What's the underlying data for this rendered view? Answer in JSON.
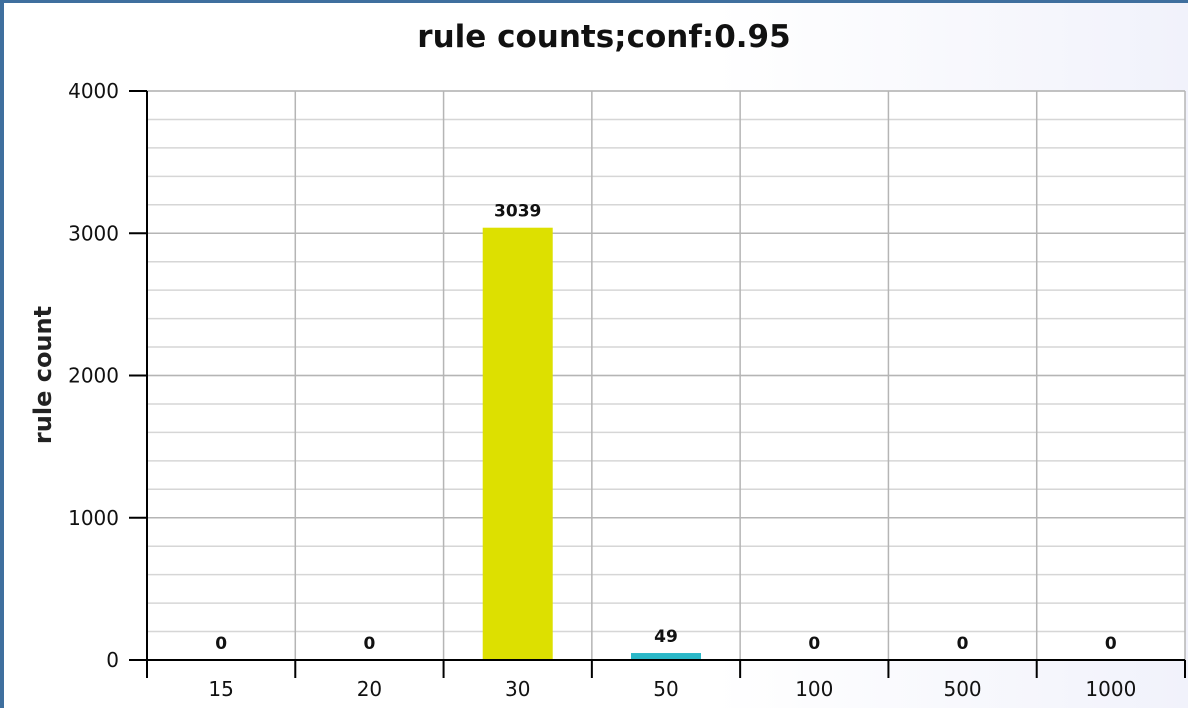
{
  "chart_data": {
    "type": "bar",
    "title": "rule counts;conf:0.95",
    "xlabel": "",
    "ylabel": "rule count",
    "categories": [
      "15",
      "20",
      "30",
      "50",
      "100",
      "500",
      "1000"
    ],
    "values": [
      0,
      0,
      3039,
      49,
      0,
      0,
      0
    ],
    "data_labels": [
      "0",
      "0",
      "3039",
      "49",
      "0",
      "0",
      "0"
    ],
    "bar_colors": [
      "#dde000",
      "#dde000",
      "#dde000",
      "#2bb8c8",
      "#dde000",
      "#dde000",
      "#dde000"
    ],
    "ylim": [
      0,
      4000
    ],
    "yticks": [
      "0",
      "1000",
      "2000",
      "3000",
      "4000"
    ],
    "ytick_values": [
      0,
      1000,
      2000,
      3000,
      4000
    ],
    "minor_grid_step": 200,
    "grid": true,
    "legend": "none"
  }
}
